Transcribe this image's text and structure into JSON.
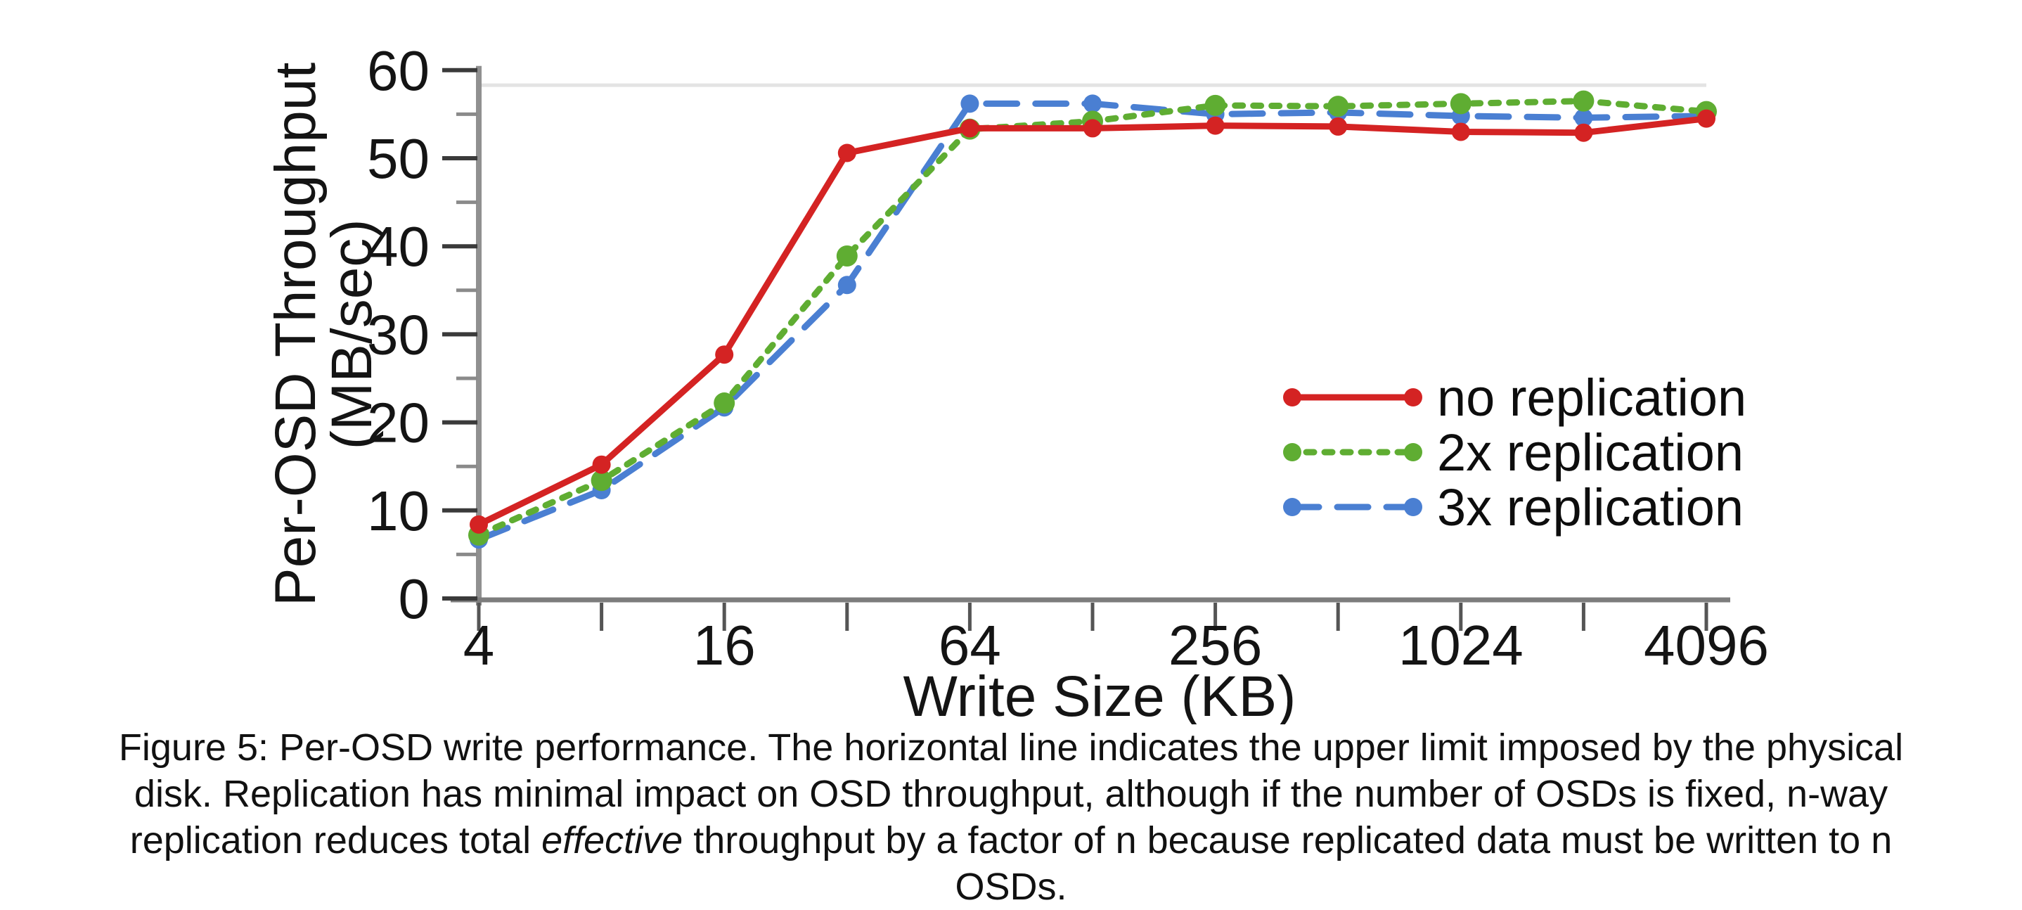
{
  "figure": {
    "caption_lines": [
      [
        {
          "text": "Figure 5: Per-OSD write performance. The horizontal line indicates the upper limit imposed by the physical"
        }
      ],
      [
        {
          "text": "disk. Replication has minimal impact on OSD throughput, although if the number of OSDs is fixed, n-way"
        }
      ],
      [
        {
          "text": "replication reduces total "
        },
        {
          "text": "effective",
          "italic": true
        },
        {
          "text": " throughput by a factor of n because replicated data must be written to n"
        }
      ],
      [
        {
          "text": "OSDs."
        }
      ]
    ]
  },
  "chart_data": {
    "type": "line",
    "x": [
      4,
      8,
      16,
      32,
      64,
      128,
      256,
      512,
      1024,
      2048,
      4096
    ],
    "x_scale": "log2",
    "x_major_tick_labels": [
      "4",
      "16",
      "64",
      "256",
      "1024",
      "4096"
    ],
    "x_major_tick_values": [
      4,
      16,
      64,
      256,
      1024,
      4096
    ],
    "xlabel": "Write Size (KB)",
    "ylabel_lines": [
      "Per-OSD Throughput",
      "(MB/sec)"
    ],
    "ylim": [
      0,
      60
    ],
    "y_major_ticks": [
      0,
      10,
      20,
      30,
      40,
      50,
      60
    ],
    "y_minor_ticks": [
      5,
      15,
      25,
      35,
      45,
      55
    ],
    "grid": "off",
    "reference_line": {
      "value": 58.3,
      "color": "#e4e4e4"
    },
    "series": [
      {
        "name": "no replication",
        "color": "#d42323",
        "style": "solid",
        "values": [
          8.4,
          15.2,
          27.7,
          50.6,
          53.4,
          53.4,
          53.7,
          53.6,
          53.0,
          52.9,
          54.5
        ]
      },
      {
        "name": "2x replication",
        "color": "#5fad32",
        "style": "dotted",
        "values": [
          7.2,
          13.4,
          22.2,
          38.9,
          53.3,
          54.2,
          56.0,
          55.9,
          56.2,
          56.5,
          55.3
        ]
      },
      {
        "name": "3x replication",
        "color": "#4a7fd2",
        "style": "dashed",
        "values": [
          6.7,
          12.3,
          21.7,
          35.6,
          56.2,
          56.2,
          55.0,
          55.2,
          54.8,
          54.6,
          54.8
        ]
      }
    ],
    "legend": {
      "position": "right-middle",
      "items": [
        "no replication",
        "2x replication",
        "3x replication"
      ]
    }
  }
}
